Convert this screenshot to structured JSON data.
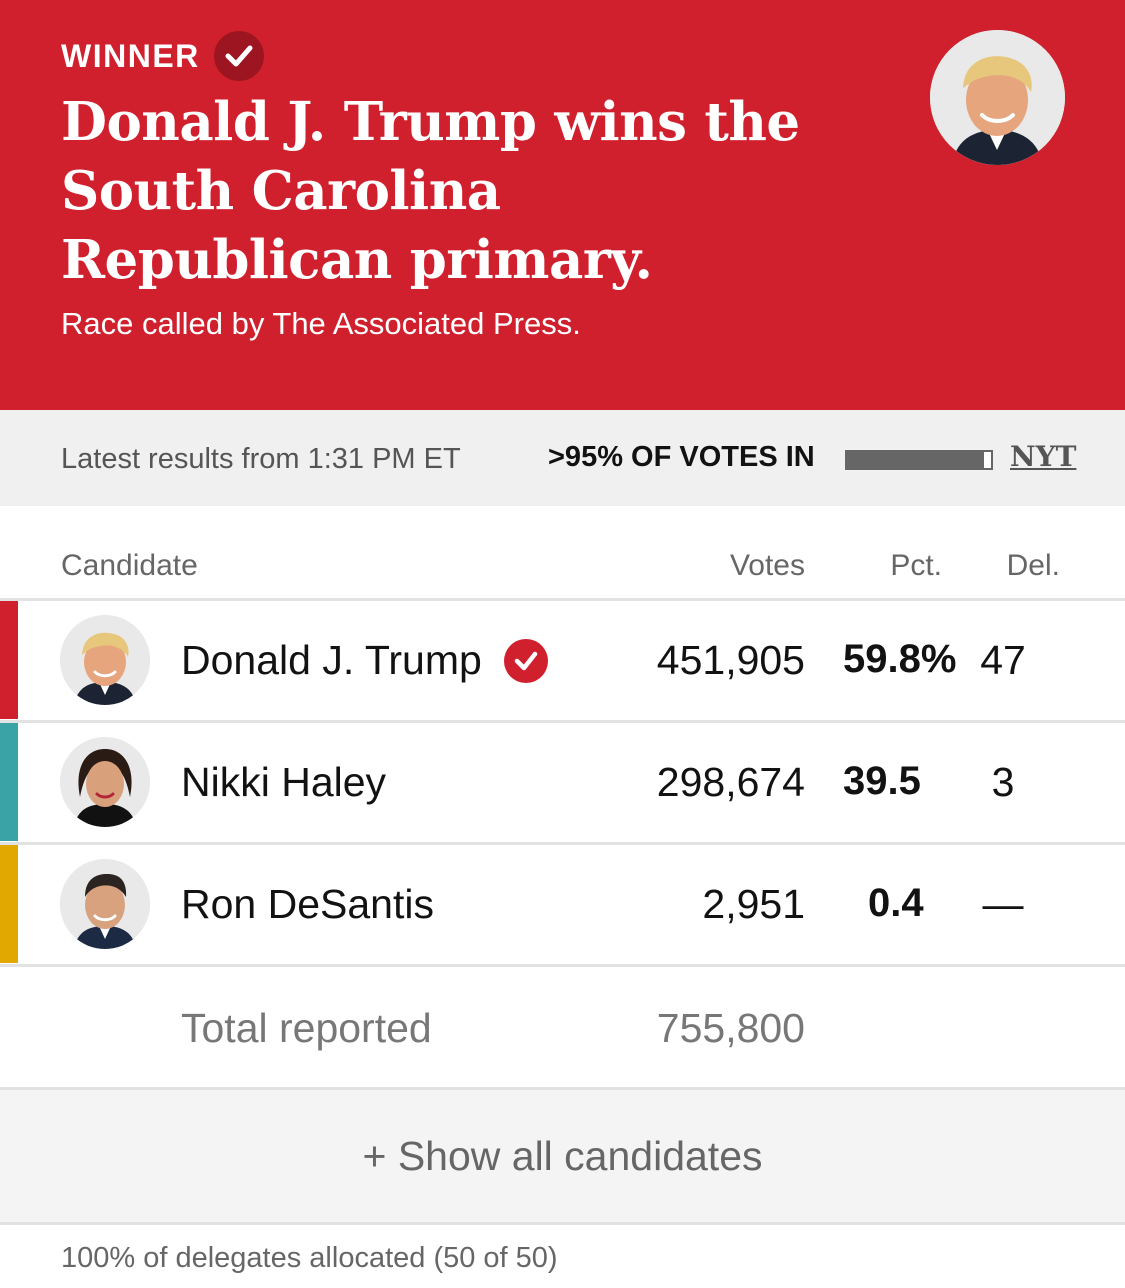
{
  "banner": {
    "winner_label": "WINNER",
    "headline": "Donald J. Trump wins the South Carolina Republican primary.",
    "called_by": "Race called by The Associated Press.",
    "color": "#d0202e"
  },
  "status": {
    "latest": "Latest results from 1:31 PM ET",
    "votes_in": ">95% OF VOTES IN",
    "votes_in_fraction": 0.95,
    "source_link": "NYT"
  },
  "table": {
    "headers": {
      "candidate": "Candidate",
      "votes": "Votes",
      "pct": "Pct.",
      "del": "Del."
    },
    "rows": [
      {
        "name": "Donald J. Trump",
        "votes": "451,905",
        "pct": "59.8%",
        "del": "47",
        "color": "#d0202e",
        "winner": true
      },
      {
        "name": "Nikki Haley",
        "votes": "298,674",
        "pct": "39.5",
        "del": "3",
        "color": "#3aa3a6",
        "winner": false
      },
      {
        "name": "Ron DeSantis",
        "votes": "2,951",
        "pct": "0.4",
        "del": "—",
        "color": "#e0a800",
        "winner": false
      }
    ],
    "total_label": "Total reported",
    "total_votes": "755,800"
  },
  "show_all": "+ Show all candidates",
  "delegates_note": "100% of delegates allocated (50 of 50)",
  "icons": {
    "winner_check": "check-circle-icon",
    "candidate_photo": "person-photo"
  }
}
